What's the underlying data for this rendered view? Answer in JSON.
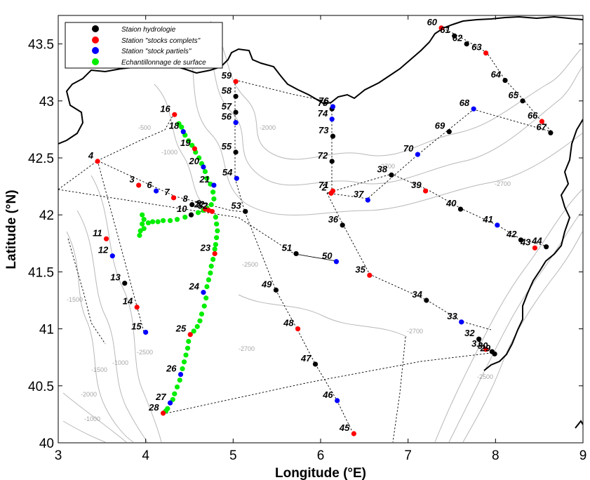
{
  "chart_data": {
    "type": "scatter",
    "xlabel": "Longitude (°E)",
    "ylabel": "Latitude (°N)",
    "xlim": [
      3,
      9
    ],
    "ylim": [
      40,
      43.75
    ],
    "x_ticks": [
      "3",
      "4",
      "5",
      "6",
      "7",
      "8",
      "9"
    ],
    "y_ticks": [
      "40",
      "40.5",
      "41",
      "41.5",
      "42",
      "42.5",
      "43",
      "43.5"
    ],
    "legend_position": "top-left",
    "series": [
      {
        "name": "Staion hydrologie",
        "color": "#000000"
      },
      {
        "name": "Station \"stocks complets\"",
        "color": "#ff0000"
      },
      {
        "name": "Station \"stock partiels\"",
        "color": "#0000ff"
      },
      {
        "name": "Echantillonnage de surface",
        "color": "#00ee00"
      }
    ],
    "stations": [
      {
        "id": "2",
        "lon": 6.12,
        "lat": 42.19,
        "type": 1
      },
      {
        "id": "3",
        "lon": 3.92,
        "lat": 42.26,
        "type": 1
      },
      {
        "id": "4",
        "lon": 3.45,
        "lat": 42.47,
        "type": 1
      },
      {
        "id": "6",
        "lon": 4.12,
        "lat": 42.21,
        "type": 2
      },
      {
        "id": "7",
        "lon": 4.32,
        "lat": 42.15,
        "type": 1
      },
      {
        "id": "8",
        "lon": 4.53,
        "lat": 42.09,
        "type": 0
      },
      {
        "id": "9",
        "lon": 4.68,
        "lat": 42.05,
        "type": 1
      },
      {
        "id": "10",
        "lon": 4.52,
        "lat": 42.0,
        "type": 0
      },
      {
        "id": "11",
        "lon": 3.55,
        "lat": 41.79,
        "type": 1
      },
      {
        "id": "12",
        "lon": 3.62,
        "lat": 41.64,
        "type": 2
      },
      {
        "id": "13",
        "lon": 3.76,
        "lat": 41.4,
        "type": 0
      },
      {
        "id": "14",
        "lon": 3.9,
        "lat": 41.19,
        "type": 1
      },
      {
        "id": "15",
        "lon": 4.0,
        "lat": 40.97,
        "type": 2
      },
      {
        "id": "16",
        "lon": 4.33,
        "lat": 42.88,
        "type": 1
      },
      {
        "id": "18",
        "lon": 4.43,
        "lat": 42.73,
        "type": 2
      },
      {
        "id": "19",
        "lon": 4.56,
        "lat": 42.58,
        "type": 1
      },
      {
        "id": "20",
        "lon": 4.66,
        "lat": 42.42,
        "type": 2
      },
      {
        "id": "21",
        "lon": 4.78,
        "lat": 42.26,
        "type": 2
      },
      {
        "id": "22",
        "lon": 4.72,
        "lat": 42.04,
        "type": 1
      },
      {
        "id": "23",
        "lon": 4.79,
        "lat": 41.66,
        "type": 1
      },
      {
        "id": "24",
        "lon": 4.66,
        "lat": 41.32,
        "type": 2
      },
      {
        "id": "25",
        "lon": 4.51,
        "lat": 40.95,
        "type": 1
      },
      {
        "id": "26",
        "lon": 4.4,
        "lat": 40.6,
        "type": 2
      },
      {
        "id": "27",
        "lon": 4.28,
        "lat": 40.35,
        "type": 2
      },
      {
        "id": "28",
        "lon": 4.2,
        "lat": 40.26,
        "type": 1
      },
      {
        "id": "29",
        "lon": 7.99,
        "lat": 40.78,
        "type": 0
      },
      {
        "id": "30",
        "lon": 7.96,
        "lat": 40.8,
        "type": 0
      },
      {
        "id": "31",
        "lon": 7.89,
        "lat": 40.82,
        "type": 1
      },
      {
        "id": "32",
        "lon": 7.81,
        "lat": 40.91,
        "type": 0
      },
      {
        "id": "33",
        "lon": 7.61,
        "lat": 41.06,
        "type": 2
      },
      {
        "id": "34",
        "lon": 7.21,
        "lat": 41.25,
        "type": 0
      },
      {
        "id": "35",
        "lon": 6.56,
        "lat": 41.47,
        "type": 1
      },
      {
        "id": "36",
        "lon": 6.25,
        "lat": 41.91,
        "type": 0
      },
      {
        "id": "37",
        "lon": 6.54,
        "lat": 42.13,
        "type": 2
      },
      {
        "id": "38",
        "lon": 6.81,
        "lat": 42.35,
        "type": 0
      },
      {
        "id": "39",
        "lon": 7.2,
        "lat": 42.21,
        "type": 1
      },
      {
        "id": "40",
        "lon": 7.6,
        "lat": 42.05,
        "type": 0
      },
      {
        "id": "41",
        "lon": 8.02,
        "lat": 41.91,
        "type": 2
      },
      {
        "id": "42",
        "lon": 8.29,
        "lat": 41.78,
        "type": 0
      },
      {
        "id": "43",
        "lon": 8.45,
        "lat": 41.71,
        "type": 1
      },
      {
        "id": "44",
        "lon": 8.58,
        "lat": 41.72,
        "type": 0
      },
      {
        "id": "45",
        "lon": 6.38,
        "lat": 40.08,
        "type": 1
      },
      {
        "id": "46",
        "lon": 6.19,
        "lat": 40.37,
        "type": 2
      },
      {
        "id": "47",
        "lon": 5.94,
        "lat": 40.69,
        "type": 0
      },
      {
        "id": "48",
        "lon": 5.74,
        "lat": 41.0,
        "type": 1
      },
      {
        "id": "49",
        "lon": 5.49,
        "lat": 41.34,
        "type": 0
      },
      {
        "id": "50",
        "lon": 6.18,
        "lat": 41.59,
        "type": 2
      },
      {
        "id": "51",
        "lon": 5.72,
        "lat": 41.66,
        "type": 0
      },
      {
        "id": "52",
        "lon": 4.76,
        "lat": 42.03,
        "type": 1
      },
      {
        "id": "53",
        "lon": 5.14,
        "lat": 42.03,
        "type": 0
      },
      {
        "id": "54",
        "lon": 5.04,
        "lat": 42.32,
        "type": 2
      },
      {
        "id": "55",
        "lon": 5.03,
        "lat": 42.55,
        "type": 0
      },
      {
        "id": "56",
        "lon": 5.03,
        "lat": 42.81,
        "type": 2
      },
      {
        "id": "57",
        "lon": 5.03,
        "lat": 42.9,
        "type": 0
      },
      {
        "id": "58",
        "lon": 5.03,
        "lat": 43.04,
        "type": 0
      },
      {
        "id": "59",
        "lon": 5.03,
        "lat": 43.17,
        "type": 1
      },
      {
        "id": "60",
        "lon": 7.38,
        "lat": 43.64,
        "type": 1
      },
      {
        "id": "61",
        "lon": 7.53,
        "lat": 43.57,
        "type": 0
      },
      {
        "id": "62",
        "lon": 7.67,
        "lat": 43.5,
        "type": 0
      },
      {
        "id": "63",
        "lon": 7.89,
        "lat": 43.42,
        "type": 1
      },
      {
        "id": "64",
        "lon": 8.11,
        "lat": 43.18,
        "type": 0
      },
      {
        "id": "65",
        "lon": 8.31,
        "lat": 43.0,
        "type": 0
      },
      {
        "id": "66",
        "lon": 8.53,
        "lat": 42.82,
        "type": 1
      },
      {
        "id": "67",
        "lon": 8.63,
        "lat": 42.72,
        "type": 0
      },
      {
        "id": "68",
        "lon": 7.75,
        "lat": 42.93,
        "type": 2
      },
      {
        "id": "69",
        "lon": 7.47,
        "lat": 42.73,
        "type": 0
      },
      {
        "id": "70",
        "lon": 7.11,
        "lat": 42.53,
        "type": 2
      },
      {
        "id": "71",
        "lon": 6.14,
        "lat": 42.21,
        "type": 1
      },
      {
        "id": "72",
        "lon": 6.13,
        "lat": 42.47,
        "type": 0
      },
      {
        "id": "73",
        "lon": 6.14,
        "lat": 42.69,
        "type": 0
      },
      {
        "id": "74",
        "lon": 6.13,
        "lat": 42.84,
        "type": 2
      },
      {
        "id": "75",
        "lon": 6.13,
        "lat": 42.93,
        "type": 0
      },
      {
        "id": "76",
        "lon": 6.14,
        "lat": 42.95,
        "type": 2
      }
    ],
    "surface_samples": [
      [
        4.38,
        42.8
      ],
      [
        4.41,
        42.77
      ],
      [
        4.45,
        42.7
      ],
      [
        4.49,
        42.65
      ],
      [
        4.53,
        42.61
      ],
      [
        4.57,
        42.55
      ],
      [
        4.61,
        42.5
      ],
      [
        4.64,
        42.45
      ],
      [
        4.68,
        42.38
      ],
      [
        4.7,
        42.32
      ],
      [
        4.74,
        42.27
      ],
      [
        4.77,
        42.2
      ],
      [
        4.78,
        42.14
      ],
      [
        4.75,
        42.09
      ],
      [
        4.7,
        42.06
      ],
      [
        4.66,
        42.04
      ],
      [
        4.6,
        42.02
      ],
      [
        4.52,
        42.0
      ],
      [
        4.45,
        41.98
      ],
      [
        4.36,
        41.96
      ],
      [
        4.28,
        41.95
      ],
      [
        4.2,
        41.95
      ],
      [
        4.14,
        41.94
      ],
      [
        4.08,
        41.94
      ],
      [
        4.03,
        41.93
      ],
      [
        3.98,
        41.96
      ],
      [
        3.96,
        42.0
      ],
      [
        3.96,
        41.92
      ],
      [
        3.98,
        41.88
      ],
      [
        3.94,
        41.86
      ],
      [
        3.93,
        41.82
      ],
      [
        4.8,
        41.98
      ],
      [
        4.81,
        41.92
      ],
      [
        4.82,
        41.86
      ],
      [
        4.81,
        41.8
      ],
      [
        4.8,
        41.74
      ],
      [
        4.79,
        41.7
      ],
      [
        4.77,
        41.61
      ],
      [
        4.75,
        41.55
      ],
      [
        4.74,
        41.49
      ],
      [
        4.72,
        41.43
      ],
      [
        4.7,
        41.37
      ],
      [
        4.69,
        41.27
      ],
      [
        4.67,
        41.2
      ],
      [
        4.64,
        41.13
      ],
      [
        4.62,
        41.07
      ],
      [
        4.59,
        41.02
      ],
      [
        4.55,
        40.98
      ],
      [
        4.49,
        40.89
      ],
      [
        4.48,
        40.83
      ],
      [
        4.46,
        40.77
      ],
      [
        4.44,
        40.71
      ],
      [
        4.42,
        40.65
      ],
      [
        4.39,
        40.55
      ],
      [
        4.36,
        40.49
      ],
      [
        4.33,
        40.43
      ],
      [
        4.31,
        40.38
      ],
      [
        4.25,
        40.3
      ],
      [
        4.23,
        40.28
      ]
    ],
    "annotations": [
      "-500",
      "-1000",
      "-1500",
      "-2000",
      "-2500",
      "-2700"
    ]
  }
}
